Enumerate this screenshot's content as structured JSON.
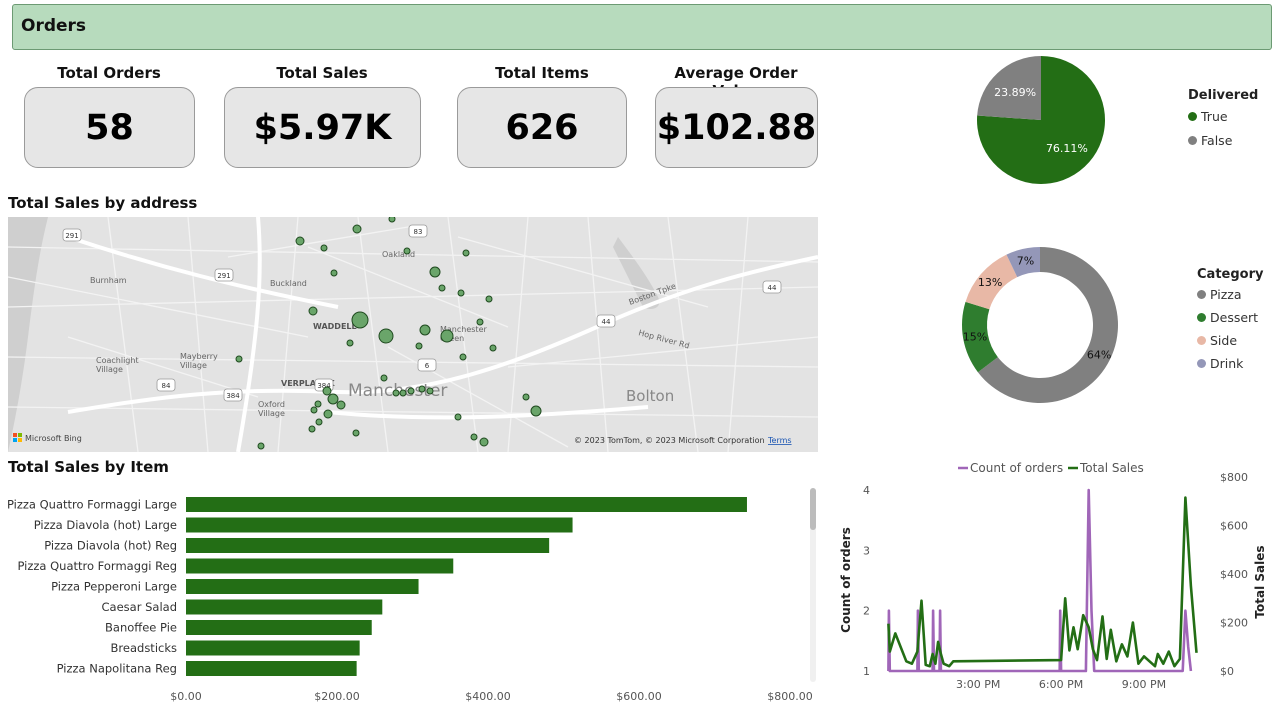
{
  "header": {
    "title": "Orders"
  },
  "kpis": [
    {
      "label": "Total Orders",
      "value": "58"
    },
    {
      "label": "Total Sales",
      "value": "$5.97K"
    },
    {
      "label": "Total Items",
      "value": "626"
    },
    {
      "label": "Average Order Value",
      "value": "$102.88"
    }
  ],
  "map": {
    "title": "Total Sales by address",
    "labels": {
      "town": "Manchester",
      "town2": "Bolton",
      "waddell": "WADDELL",
      "verplanck": "VERPLANCK",
      "buckland": "Buckland",
      "burnham": "Burnham",
      "coachlight": "Coachlight\nVillage",
      "mayberry": "Mayberry\nVillage",
      "oxford": "Oxford\nVillage",
      "oakland": "Oakland",
      "manchester_green": "Manchester\nGreen",
      "boston_tpke": "Boston Tpke",
      "hop_river": "Hop River Rd"
    },
    "shields": [
      "291",
      "291",
      "83",
      "44",
      "44",
      "6",
      "84",
      "384",
      "384"
    ],
    "copyright": "© 2023 TomTom, © 2023 Microsoft Corporation",
    "terms": "Terms",
    "bing": "Microsoft Bing"
  },
  "delivered_pie": {
    "legend_title": "Delivered",
    "slices": [
      {
        "name": "True",
        "value": 76.11,
        "label": "76.11%",
        "color": "#236e15"
      },
      {
        "name": "False",
        "value": 23.89,
        "label": "23.89%",
        "color": "#808080"
      }
    ]
  },
  "category_donut": {
    "legend_title": "Category",
    "slices": [
      {
        "name": "Pizza",
        "value": 64,
        "label": "64%",
        "color": "#808080"
      },
      {
        "name": "Dessert",
        "value": 15,
        "label": "15%",
        "color": "#2f7d2f"
      },
      {
        "name": "Side",
        "value": 13,
        "label": "13%",
        "color": "#e8b8a6"
      },
      {
        "name": "Drink",
        "value": 7,
        "label": "7%",
        "color": "#9497b8"
      }
    ]
  },
  "chart_data": [
    {
      "type": "bar",
      "title": "Total Sales by Item",
      "orientation": "horizontal",
      "categories": [
        "Pizza Quattro Formaggi Large",
        "Pizza Diavola (hot) Large",
        "Pizza Diavola (hot) Reg",
        "Pizza Quattro Formaggi Reg",
        "Pizza Pepperoni Large",
        "Caesar Salad",
        "Banoffee Pie",
        "Breadsticks",
        "Pizza Napolitana Reg"
      ],
      "values": [
        743,
        512,
        481,
        354,
        308,
        260,
        246,
        230,
        226
      ],
      "xlim": [
        0,
        800
      ],
      "xticks": [
        "$0.00",
        "$200.00",
        "$400.00",
        "$600.00",
        "$800.00"
      ],
      "color": "#236e15",
      "grid": false
    },
    {
      "type": "line",
      "legend": [
        "Count of orders",
        "Total Sales"
      ],
      "legend_position": "top",
      "ylabel": "Count of orders",
      "y2label": "Total Sales",
      "yticks": [
        "1",
        "2",
        "3",
        "4"
      ],
      "y2ticks": [
        "$0",
        "$200",
        "$400",
        "$600",
        "$800"
      ],
      "xticks": [
        "3:00 PM",
        "6:00 PM",
        "9:00 PM"
      ],
      "ylim": [
        1,
        4
      ],
      "y2lim": [
        0,
        800
      ],
      "xlim_hours": [
        11.7,
        23.1
      ],
      "series": [
        {
          "name": "Count of orders",
          "axis": "left",
          "color": "#a066b8",
          "x": [
            11.75,
            11.77,
            11.8,
            12.8,
            12.82,
            12.85,
            13.35,
            13.37,
            13.4,
            13.6,
            13.62,
            13.65,
            17.95,
            17.97,
            18.0,
            18.9,
            19.0,
            19.1,
            19.2,
            22.4,
            22.5,
            22.6,
            22.7
          ],
          "y": [
            1,
            2,
            1,
            1,
            2,
            1,
            1,
            2,
            1,
            1,
            2,
            1,
            1,
            2,
            1,
            1,
            4,
            2,
            1,
            1,
            2,
            1.4,
            1
          ]
        },
        {
          "name": "Total Sales",
          "axis": "right",
          "color": "#236e15",
          "x": [
            11.75,
            11.8,
            12.0,
            12.4,
            12.6,
            12.8,
            12.95,
            13.1,
            13.25,
            13.35,
            13.45,
            13.55,
            13.65,
            13.75,
            13.95,
            14.1,
            18.0,
            18.15,
            18.3,
            18.45,
            18.6,
            18.8,
            19.0,
            19.15,
            19.3,
            19.5,
            19.65,
            19.8,
            20.0,
            20.2,
            20.4,
            20.6,
            20.8,
            21.0,
            21.2,
            21.4,
            21.5,
            21.7,
            21.9,
            22.1,
            22.3,
            22.5,
            22.7,
            22.9
          ],
          "y": [
            195,
            80,
            155,
            40,
            30,
            80,
            290,
            25,
            20,
            70,
            30,
            120,
            70,
            30,
            20,
            40,
            45,
            300,
            85,
            180,
            90,
            230,
            180,
            90,
            45,
            225,
            50,
            170,
            40,
            110,
            60,
            200,
            30,
            60,
            40,
            20,
            70,
            30,
            80,
            20,
            50,
            715,
            350,
            75
          ]
        }
      ]
    }
  ]
}
